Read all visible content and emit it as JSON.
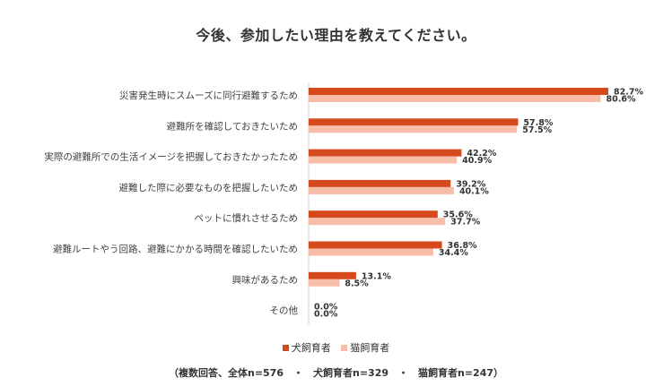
{
  "chart_data": {
    "type": "bar",
    "orientation": "horizontal",
    "title": "今後、参加したい理由を教えてください。",
    "categories": [
      "災害発生時にスムーズに同行避難するため",
      "避難所を確認しておきたいため",
      "実際の避難所での生活イメージを把握しておきたかったため",
      "避難した際に必要なものを把握したいため",
      "ペットに慣れさせるため",
      "避難ルートやう回路、避難にかかる時間を確認したいため",
      "興味があるため",
      "その他"
    ],
    "series": [
      {
        "name": "犬飼育者",
        "color": "#d5491c",
        "values": [
          82.7,
          57.8,
          42.2,
          39.2,
          35.6,
          36.8,
          13.1,
          0.0
        ],
        "labels": [
          "82.7%",
          "57.8%",
          "42.2%",
          "39.2%",
          "35.6%",
          "36.8%",
          "13.1%",
          "0.0%"
        ]
      },
      {
        "name": "猫飼育者",
        "color": "#f7bda9",
        "values": [
          80.6,
          57.5,
          40.9,
          40.1,
          37.7,
          34.4,
          8.5,
          0.0
        ],
        "labels": [
          "80.6%",
          "57.5%",
          "40.9%",
          "40.1%",
          "37.7%",
          "34.4%",
          "8.5%",
          "0.0%"
        ]
      }
    ],
    "xlim": [
      0,
      100
    ],
    "grid": false,
    "legend_position": "bottom",
    "footnote": "（複数回答、全体n=576　・　犬飼育者n=329　・　猫飼育者n=247）"
  }
}
